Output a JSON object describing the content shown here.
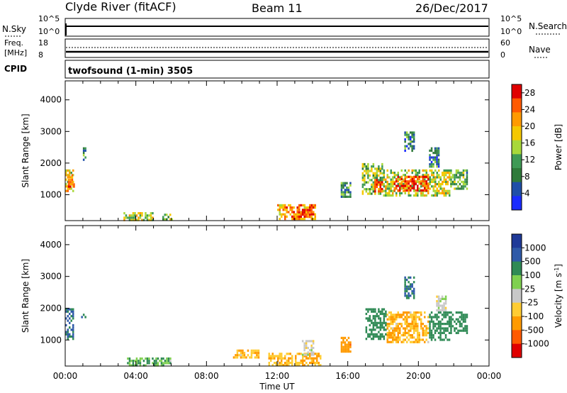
{
  "header": {
    "station": "Clyde River (fitACF)",
    "beam": "Beam 11",
    "date": "26/Dec/2017"
  },
  "status_panels": {
    "nsky_label": "N.Sky",
    "nsky_ticks": [
      "10^5",
      "10^0"
    ],
    "nsearch_label": "N.Search",
    "nsearch_ticks": [
      "10^5",
      "10^0"
    ],
    "freq_label_1": "Freq.",
    "freq_label_2": "[MHz]",
    "freq_ticks": [
      "18",
      "8"
    ],
    "nave_label": "Nave",
    "nave_ticks": [
      "60",
      "0"
    ],
    "cpid_label": "CPID",
    "cpid_text": "twofsound (1-min) 3505"
  },
  "colors": {
    "power_scale": [
      "#1a2cff",
      "#1f4fa8",
      "#2f7a3a",
      "#3f9a55",
      "#a8d83a",
      "#f5c800",
      "#ff9a00",
      "#ff5a00",
      "#e00000"
    ],
    "velocity_scale": [
      "#e00000",
      "#ff5a00",
      "#ff9a00",
      "#ffcc33",
      "#c8c8c8",
      "#7fd050",
      "#2f8a55",
      "#2f5aa8",
      "#1f3a98"
    ]
  },
  "chart_data": [
    {
      "type": "heatmap",
      "name": "power",
      "xlabel": "",
      "ylabel": "Slant Range [km]",
      "y_ticks": [
        "4000",
        "3000",
        "2000",
        "1000"
      ],
      "y_tick_values": [
        4000,
        3000,
        2000,
        1000
      ],
      "ylim": [
        180,
        4600
      ],
      "xlim": [
        0,
        24
      ],
      "colorbar_label": "Power [dB]",
      "colorbar_ticks": [
        "28",
        "24",
        "20",
        "16",
        "12",
        "8",
        "4"
      ],
      "colorbar_tick_values": [
        28,
        24,
        20,
        16,
        12,
        8,
        4
      ],
      "colorbar_range": [
        0,
        30
      ],
      "regions": [
        {
          "t0": 0.0,
          "t1": 0.5,
          "r0": 1150,
          "r1": 1800,
          "v": 18
        },
        {
          "t0": 0.15,
          "t1": 0.5,
          "r0": 1250,
          "r1": 1650,
          "v": 24
        },
        {
          "t0": 1.0,
          "t1": 1.2,
          "r0": 2100,
          "r1": 2500,
          "v": 8
        },
        {
          "t0": 3.3,
          "t1": 5.0,
          "r0": 200,
          "r1": 450,
          "v": 16
        },
        {
          "t0": 5.5,
          "t1": 6.1,
          "r0": 200,
          "r1": 400,
          "v": 14
        },
        {
          "t0": 12.0,
          "t1": 14.2,
          "r0": 200,
          "r1": 700,
          "v": 22
        },
        {
          "t0": 13.2,
          "t1": 14.0,
          "r0": 300,
          "r1": 550,
          "v": 28
        },
        {
          "t0": 15.6,
          "t1": 16.2,
          "r0": 900,
          "r1": 1400,
          "v": 10
        },
        {
          "t0": 16.8,
          "t1": 18.0,
          "r0": 1000,
          "r1": 2000,
          "v": 14
        },
        {
          "t0": 17.5,
          "t1": 18.0,
          "r0": 1100,
          "r1": 1500,
          "v": 26
        },
        {
          "t0": 18.0,
          "t1": 21.8,
          "r0": 1000,
          "r1": 1800,
          "v": 16
        },
        {
          "t0": 18.6,
          "t1": 20.6,
          "r0": 1150,
          "r1": 1600,
          "v": 26
        },
        {
          "t0": 19.2,
          "t1": 19.8,
          "r0": 2400,
          "r1": 3000,
          "v": 8
        },
        {
          "t0": 20.6,
          "t1": 21.2,
          "r0": 1900,
          "r1": 2500,
          "v": 8
        },
        {
          "t0": 21.8,
          "t1": 22.8,
          "r0": 1200,
          "r1": 1800,
          "v": 12
        }
      ]
    },
    {
      "type": "heatmap",
      "name": "velocity",
      "xlabel": "Time UT",
      "ylabel": "Slant Range [km]",
      "x_ticks": [
        "00:00",
        "04:00",
        "08:00",
        "12:00",
        "16:00",
        "20:00",
        "00:00"
      ],
      "x_tick_values": [
        0,
        4,
        8,
        12,
        16,
        20,
        24
      ],
      "y_ticks": [
        "4000",
        "3000",
        "2000",
        "1000"
      ],
      "y_tick_values": [
        4000,
        3000,
        2000,
        1000
      ],
      "ylim": [
        180,
        4600
      ],
      "xlim": [
        0,
        24
      ],
      "colorbar_label": "Velocity [m s^-1]",
      "colorbar_ticks": [
        "1000",
        "500",
        "100",
        "25",
        "-25",
        "-100",
        "-500",
        "-1000"
      ],
      "colorbar_tick_values": [
        1000,
        500,
        100,
        25,
        -25,
        -100,
        -500,
        -1000
      ],
      "regions": [
        {
          "t0": 0.0,
          "t1": 0.5,
          "r0": 1000,
          "r1": 2000,
          "v": 500
        },
        {
          "t0": 0.9,
          "t1": 1.2,
          "r0": 1700,
          "r1": 1900,
          "v": 500
        },
        {
          "t0": 3.5,
          "t1": 6.0,
          "r0": 200,
          "r1": 450,
          "v": 100
        },
        {
          "t0": 9.5,
          "t1": 11.0,
          "r0": 450,
          "r1": 700,
          "v": -100
        },
        {
          "t0": 11.5,
          "t1": 14.5,
          "r0": 200,
          "r1": 600,
          "v": -100
        },
        {
          "t0": 13.4,
          "t1": 14.1,
          "r0": 550,
          "r1": 1000,
          "v": 0
        },
        {
          "t0": 15.6,
          "t1": 16.2,
          "r0": 650,
          "r1": 1100,
          "v": -300
        },
        {
          "t0": 17.0,
          "t1": 18.2,
          "r0": 1000,
          "r1": 2000,
          "v": 300
        },
        {
          "t0": 18.2,
          "t1": 20.6,
          "r0": 900,
          "r1": 1900,
          "v": -100
        },
        {
          "t0": 19.2,
          "t1": 19.8,
          "r0": 2300,
          "r1": 3000,
          "v": 500
        },
        {
          "t0": 20.6,
          "t1": 21.8,
          "r0": 1000,
          "r1": 1900,
          "v": 300
        },
        {
          "t0": 21.0,
          "t1": 21.6,
          "r0": 1900,
          "r1": 2400,
          "v": 0
        },
        {
          "t0": 21.8,
          "t1": 22.8,
          "r0": 1200,
          "r1": 1900,
          "v": 300
        }
      ]
    }
  ]
}
